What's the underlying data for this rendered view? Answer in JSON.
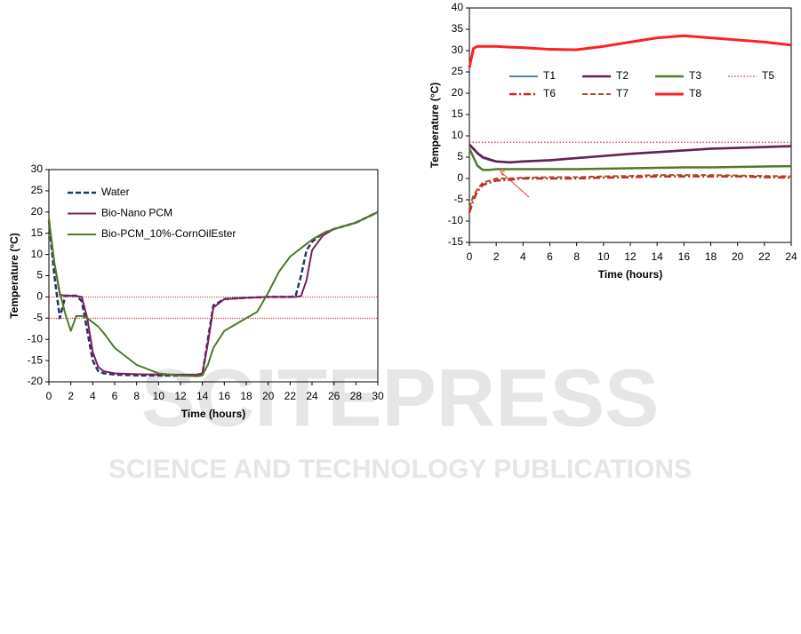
{
  "chart_data": [
    {
      "type": "line",
      "xlabel": "Time (hours)",
      "ylabel": "Temperature (°C)",
      "x": [
        0,
        0.5,
        1,
        1.5,
        2,
        2.5,
        3,
        3.5,
        4,
        4.5,
        5,
        6,
        8,
        10,
        12,
        13.5,
        14,
        14.5,
        15,
        16,
        18,
        19,
        20,
        21,
        22,
        22.5,
        23,
        23.5,
        24,
        25,
        26,
        28,
        30
      ],
      "series": [
        {
          "name": "Water",
          "color": "#1f3864",
          "dash": "dashed",
          "linewidth": 2.5,
          "values": [
            18,
            5,
            -5,
            0.3,
            0.3,
            0.3,
            -1,
            -8,
            -15,
            -17.5,
            -18,
            -18.3,
            -18.5,
            -18.5,
            -18.5,
            -18.5,
            -18.3,
            -10,
            -2,
            -0.5,
            -0.2,
            -0.1,
            0,
            0,
            0,
            0.2,
            5,
            11,
            13,
            15,
            16,
            17.5,
            20
          ]
        },
        {
          "name": "Bio-Nano PCM",
          "color": "#7b1f5a",
          "dash": "solid",
          "linewidth": 2,
          "values": [
            18,
            8,
            0.5,
            0.3,
            0.3,
            0.2,
            0,
            -5,
            -13,
            -16.5,
            -17.5,
            -18,
            -18.2,
            -18.3,
            -18.3,
            -18.3,
            -18,
            -11,
            -2.5,
            -0.5,
            -0.2,
            -0.1,
            0,
            0,
            0,
            0,
            0.2,
            4,
            11,
            14.5,
            16,
            17.5,
            20
          ]
        },
        {
          "name": "Bio-PCM_10%-CornOilEster",
          "color": "#4f7a28",
          "dash": "solid",
          "linewidth": 2,
          "values": [
            18.5,
            8,
            1,
            -4,
            -8,
            -4.5,
            -4.5,
            -5,
            -6,
            -7,
            -8.5,
            -12,
            -16,
            -18,
            -18.5,
            -18.7,
            -18.5,
            -16,
            -12,
            -8,
            -5,
            -3.5,
            1,
            6,
            9.5,
            10.5,
            11.5,
            12.5,
            13.5,
            15,
            16,
            17.5,
            20
          ]
        }
      ],
      "hlines": [
        0,
        -5
      ],
      "hline_color": "#c00000",
      "xlim": [
        0,
        30
      ],
      "xticks": [
        0,
        2,
        4,
        6,
        8,
        10,
        12,
        14,
        16,
        18,
        20,
        22,
        24,
        26,
        28,
        30
      ],
      "ylim": [
        -20,
        30
      ],
      "yticks": [
        -20,
        -15,
        -10,
        -5,
        0,
        5,
        10,
        15,
        20,
        25,
        30
      ]
    },
    {
      "type": "line",
      "xlabel": "Time (hours)",
      "ylabel": "Temperature (°C)",
      "x": [
        0,
        0.3,
        0.6,
        1,
        1.5,
        2,
        3,
        4,
        6,
        8,
        10,
        12,
        14,
        16,
        18,
        20,
        22,
        24
      ],
      "series": [
        {
          "name": "T1",
          "color": "#4f81bd",
          "dash": "solid",
          "linewidth": 2,
          "values": [
            7.8,
            6.8,
            5.8,
            4.8,
            4.3,
            3.9,
            3.7,
            3.9,
            4.2,
            4.7,
            5.2,
            5.7,
            6.1,
            6.5,
            6.9,
            7.1,
            7.3,
            7.5
          ]
        },
        {
          "name": "T2",
          "color": "#6b1d4f",
          "dash": "solid",
          "linewidth": 2.5,
          "values": [
            8,
            7,
            6,
            5,
            4.5,
            4,
            3.8,
            4,
            4.3,
            4.8,
            5.3,
            5.8,
            6.2,
            6.6,
            7,
            7.2,
            7.4,
            7.6
          ]
        },
        {
          "name": "T3",
          "color": "#4f7a28",
          "dash": "solid",
          "linewidth": 2.5,
          "values": [
            7,
            5,
            3,
            2,
            2,
            2.2,
            2.2,
            2.2,
            2.2,
            2.2,
            2.3,
            2.4,
            2.5,
            2.6,
            2.6,
            2.7,
            2.8,
            2.9
          ]
        },
        {
          "name": "T5",
          "color": "#9b3070",
          "dash": "dotted",
          "linewidth": 1.2,
          "values": [
            8.5,
            8.5,
            8.5,
            8.5,
            8.5,
            8.5,
            8.5,
            8.5,
            8.5,
            8.5,
            8.5,
            8.5,
            8.5,
            8.5,
            8.5,
            8.5,
            8.5,
            8.5
          ]
        },
        {
          "name": "T6",
          "color": "#c0281b",
          "dash": "dashdot",
          "linewidth": 2.5,
          "values": [
            -8,
            -5,
            -3,
            -1.5,
            -1,
            -0.5,
            -0.3,
            0,
            0,
            0,
            0.2,
            0.3,
            0.5,
            0.5,
            0.5,
            0.5,
            0.3,
            0.2
          ]
        },
        {
          "name": "T7",
          "color": "#a0522d",
          "dash": "dashed",
          "linewidth": 2,
          "values": [
            -7,
            -4,
            -2.5,
            -1,
            -0.5,
            0,
            0,
            0.2,
            0.3,
            0.3,
            0.5,
            0.6,
            0.8,
            0.8,
            0.8,
            0.7,
            0.6,
            0.5
          ]
        },
        {
          "name": "T8",
          "color": "#ff2020",
          "dash": "solid",
          "linewidth": 3,
          "values": [
            26,
            30.5,
            31,
            31,
            31,
            31,
            30.8,
            30.7,
            30.3,
            30.2,
            31,
            32,
            33,
            33.5,
            33,
            32.5,
            32,
            31.3
          ]
        }
      ],
      "xlim": [
        0,
        24
      ],
      "xticks": [
        0,
        2,
        4,
        6,
        8,
        10,
        12,
        14,
        16,
        18,
        20,
        22,
        24
      ],
      "ylim": [
        -15,
        40
      ],
      "yticks": [
        -15,
        -10,
        -5,
        0,
        5,
        10,
        15,
        20,
        25,
        30,
        35,
        40
      ]
    }
  ],
  "watermark": {
    "title": "SCITEPRESS",
    "subtitle": "SCIENCE AND TECHNOLOGY PUBLICATIONS"
  }
}
